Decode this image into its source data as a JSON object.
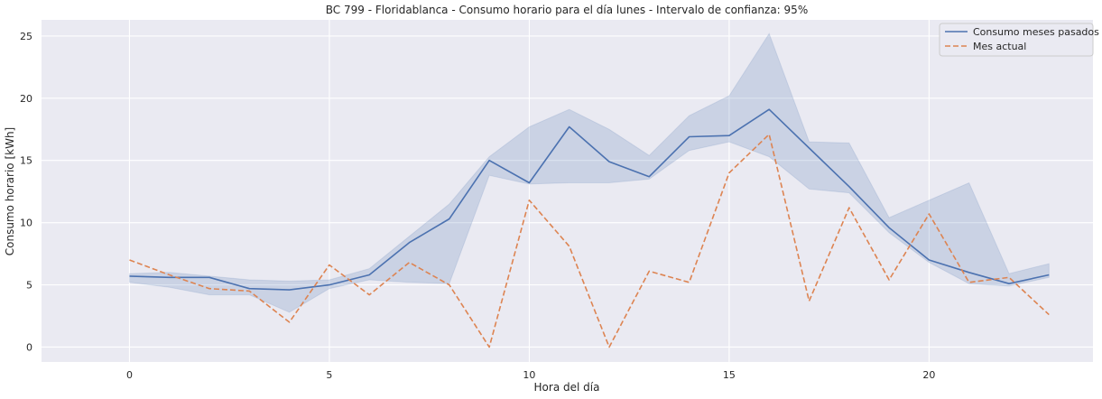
{
  "chart_data": {
    "type": "line",
    "title": "BC 799 - Floridablanca - Consumo horario para el día lunes - Intervalo de confianza: 95%",
    "xlabel": "Hora del día",
    "ylabel": "Consumo horario [kWh]",
    "xlim": [
      -2.2,
      24.1
    ],
    "ylim": [
      -1.2,
      26.3
    ],
    "xticks": [
      0,
      5,
      10,
      15,
      20
    ],
    "yticks": [
      0,
      5,
      10,
      15,
      20,
      25
    ],
    "grid": true,
    "legend_position": "top-right",
    "x": [
      0,
      1,
      2,
      3,
      4,
      5,
      6,
      7,
      8,
      9,
      10,
      11,
      12,
      13,
      14,
      15,
      16,
      17,
      18,
      19,
      20,
      21,
      22,
      23
    ],
    "series": [
      {
        "name": "Consumo meses pasados",
        "style": "solid",
        "color": "#4c72b0",
        "values": [
          5.7,
          5.6,
          5.6,
          4.7,
          4.6,
          5.0,
          5.8,
          8.4,
          10.3,
          15.0,
          13.2,
          17.7,
          14.9,
          13.7,
          16.9,
          17.0,
          19.1,
          16.0,
          12.9,
          9.6,
          7.0,
          6.0,
          5.1,
          5.8
        ],
        "ci_lower": [
          5.2,
          4.8,
          4.2,
          4.2,
          2.8,
          4.7,
          5.4,
          5.2,
          5.1,
          13.8,
          13.1,
          13.2,
          13.2,
          13.5,
          15.8,
          16.5,
          15.3,
          12.7,
          12.4,
          9.2,
          6.8,
          5.1,
          4.9,
          5.6
        ],
        "ci_upper": [
          5.9,
          6.0,
          5.7,
          5.4,
          5.3,
          5.4,
          6.3,
          8.9,
          11.5,
          15.3,
          17.7,
          19.1,
          17.5,
          15.4,
          18.6,
          20.2,
          25.2,
          16.5,
          16.4,
          10.4,
          11.8,
          13.2,
          5.9,
          6.7
        ]
      },
      {
        "name": "Mes actual",
        "style": "dashed",
        "color": "#dd8452",
        "values": [
          7.0,
          5.8,
          4.7,
          4.5,
          2.0,
          6.6,
          4.2,
          6.8,
          5.0,
          0.0,
          11.8,
          8.1,
          0.0,
          6.1,
          5.2,
          14.0,
          17.1,
          3.7,
          11.2,
          5.4,
          10.7,
          5.2,
          5.6,
          2.6
        ]
      }
    ]
  }
}
